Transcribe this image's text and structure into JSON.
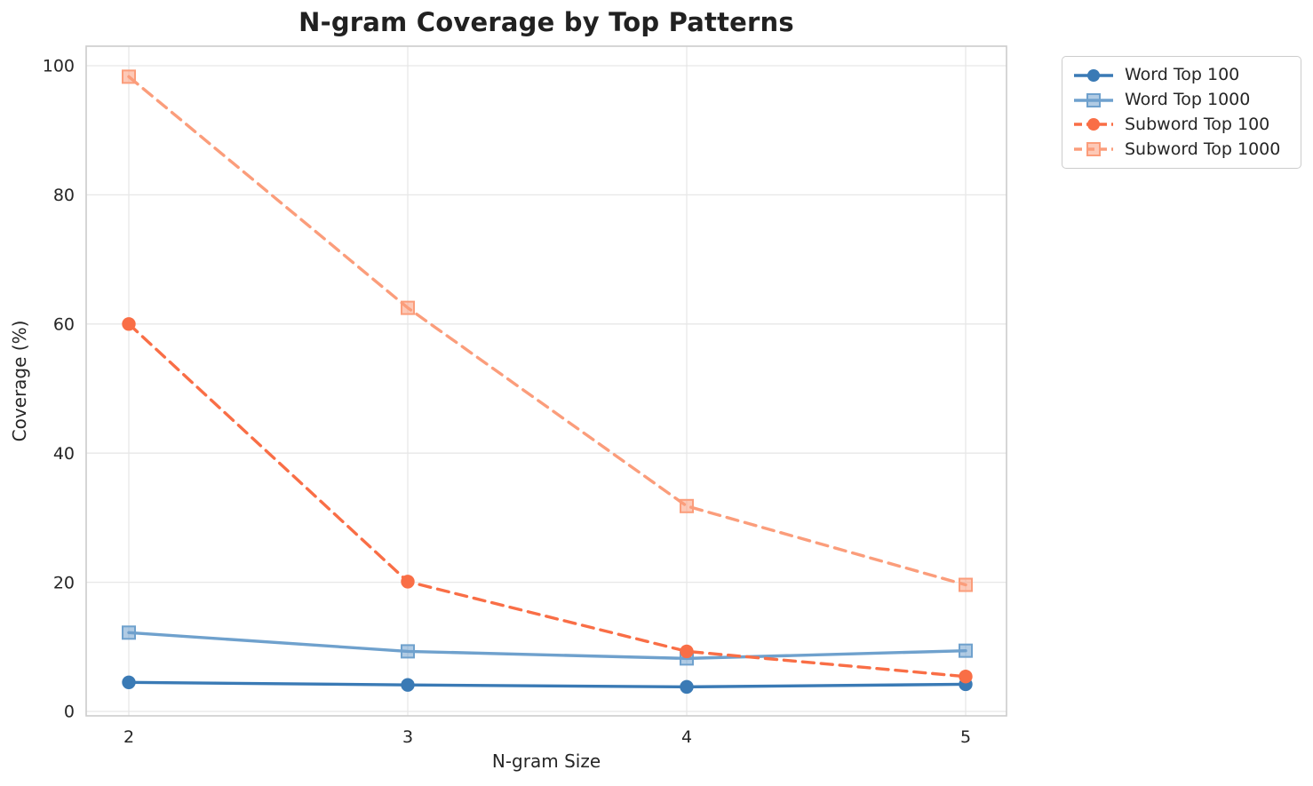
{
  "chart_data": {
    "type": "line",
    "title": "N-gram Coverage by Top Patterns",
    "xlabel": "N-gram Size",
    "ylabel": "Coverage (%)",
    "x": [
      2,
      3,
      4,
      5
    ],
    "xtick_labels": [
      "2",
      "3",
      "4",
      "5"
    ],
    "ytick_values": [
      0,
      20,
      40,
      60,
      80,
      100
    ],
    "ytick_labels": [
      "0",
      "20",
      "40",
      "60",
      "80",
      "100"
    ],
    "ylim": [
      -1,
      103
    ],
    "grid": true,
    "legend_position": "outside-top-right",
    "series": [
      {
        "name": "Word Top 100",
        "values": [
          4.5,
          4.1,
          3.8,
          4.2
        ],
        "color": "#3a7ab5",
        "line_style": "solid",
        "marker": "circle"
      },
      {
        "name": "Word Top 1000",
        "values": [
          12.2,
          9.3,
          8.2,
          9.4
        ],
        "color": "#6fa1cd",
        "line_style": "solid",
        "marker": "square"
      },
      {
        "name": "Subword Top 100",
        "values": [
          60.0,
          20.1,
          9.3,
          5.4
        ],
        "color": "#f96e46",
        "line_style": "dashed",
        "marker": "circle"
      },
      {
        "name": "Subword Top 1000",
        "values": [
          98.3,
          62.5,
          31.8,
          19.6
        ],
        "color": "#fb9d7b",
        "line_style": "dashed",
        "marker": "square"
      }
    ],
    "colors": {
      "background": "#ffffff",
      "grid": "#e7e7e7",
      "frame": "#cccccc",
      "text": "#262626",
      "title": "#212121"
    }
  }
}
